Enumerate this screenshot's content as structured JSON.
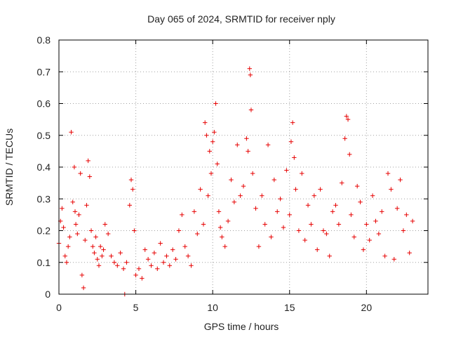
{
  "chart_data": {
    "type": "scatter",
    "title": "Day 065 of 2024, SRMTID for receiver nply",
    "xlabel": "GPS time / hours",
    "ylabel": "SRMTID / TECUs",
    "xlim": [
      0,
      24
    ],
    "ylim": [
      0,
      0.8
    ],
    "xticks": [
      0,
      5,
      10,
      15,
      20
    ],
    "xtick_labels": [
      "0",
      "5",
      "10",
      "15",
      "20"
    ],
    "yticks": [
      0,
      0.1,
      0.2,
      0.3,
      0.4,
      0.5,
      0.6,
      0.7,
      0.8
    ],
    "ytick_labels": [
      "0",
      "0.1",
      "0.2",
      "0.3",
      "0.4",
      "0.5",
      "0.6",
      "0.7",
      "0.8"
    ],
    "grid": true,
    "marker": "+",
    "color": "#e60000",
    "series": [
      {
        "name": "SRMTID",
        "x": [
          0.0,
          0.1,
          0.2,
          0.3,
          0.4,
          0.5,
          0.6,
          0.7,
          0.8,
          0.9,
          1.0,
          1.05,
          1.1,
          1.2,
          1.3,
          1.4,
          1.5,
          1.6,
          1.7,
          1.8,
          1.9,
          2.0,
          2.1,
          2.2,
          2.3,
          2.4,
          2.5,
          2.6,
          2.7,
          2.8,
          2.9,
          3.0,
          3.2,
          3.4,
          3.6,
          3.8,
          4.0,
          4.2,
          4.28,
          4.4,
          4.6,
          4.7,
          4.8,
          4.9,
          5.0,
          5.2,
          5.4,
          5.6,
          5.8,
          6.0,
          6.2,
          6.4,
          6.6,
          6.8,
          7.0,
          7.2,
          7.4,
          7.6,
          7.8,
          8.0,
          8.2,
          8.4,
          8.6,
          8.8,
          9.0,
          9.2,
          9.4,
          9.5,
          9.6,
          9.7,
          9.8,
          9.9,
          10.0,
          10.1,
          10.2,
          10.3,
          10.4,
          10.5,
          10.6,
          10.8,
          11.0,
          11.2,
          11.4,
          11.6,
          11.8,
          12.0,
          12.2,
          12.3,
          12.4,
          12.45,
          12.5,
          12.6,
          12.8,
          13.0,
          13.2,
          13.4,
          13.6,
          13.8,
          14.0,
          14.2,
          14.4,
          14.6,
          14.8,
          15.0,
          15.1,
          15.2,
          15.3,
          15.4,
          15.6,
          15.8,
          16.0,
          16.2,
          16.4,
          16.6,
          16.8,
          17.0,
          17.2,
          17.4,
          17.6,
          17.8,
          18.0,
          18.2,
          18.4,
          18.6,
          18.7,
          18.8,
          18.9,
          19.0,
          19.2,
          19.4,
          19.6,
          19.8,
          20.0,
          20.2,
          20.4,
          20.6,
          20.8,
          21.0,
          21.2,
          21.4,
          21.6,
          21.8,
          22.0,
          22.2,
          22.4,
          22.6,
          22.8,
          23.0
        ],
        "values": [
          0.16,
          0.23,
          0.27,
          0.21,
          0.12,
          0.1,
          0.15,
          0.18,
          0.51,
          0.29,
          0.4,
          0.26,
          0.22,
          0.19,
          0.25,
          0.38,
          0.06,
          0.02,
          0.17,
          0.28,
          0.42,
          0.37,
          0.2,
          0.15,
          0.13,
          0.18,
          0.11,
          0.09,
          0.15,
          0.12,
          0.14,
          0.22,
          0.19,
          0.12,
          0.1,
          0.09,
          0.13,
          0.08,
          0.0,
          0.1,
          0.28,
          0.36,
          0.33,
          0.2,
          0.06,
          0.08,
          0.05,
          0.14,
          0.11,
          0.09,
          0.13,
          0.08,
          0.16,
          0.1,
          0.12,
          0.09,
          0.14,
          0.11,
          0.2,
          0.25,
          0.15,
          0.12,
          0.09,
          0.26,
          0.19,
          0.33,
          0.22,
          0.54,
          0.5,
          0.31,
          0.45,
          0.38,
          0.48,
          0.51,
          0.6,
          0.41,
          0.26,
          0.21,
          0.18,
          0.15,
          0.23,
          0.36,
          0.29,
          0.47,
          0.31,
          0.34,
          0.49,
          0.45,
          0.71,
          0.69,
          0.58,
          0.38,
          0.27,
          0.15,
          0.31,
          0.22,
          0.47,
          0.18,
          0.36,
          0.26,
          0.3,
          0.21,
          0.39,
          0.25,
          0.48,
          0.54,
          0.43,
          0.33,
          0.2,
          0.38,
          0.17,
          0.28,
          0.22,
          0.31,
          0.14,
          0.33,
          0.2,
          0.19,
          0.12,
          0.26,
          0.28,
          0.22,
          0.35,
          0.49,
          0.56,
          0.55,
          0.44,
          0.25,
          0.18,
          0.34,
          0.29,
          0.14,
          0.22,
          0.17,
          0.31,
          0.23,
          0.19,
          0.26,
          0.12,
          0.38,
          0.33,
          0.11,
          0.27,
          0.36,
          0.2,
          0.25,
          0.13,
          0.23
        ]
      }
    ]
  }
}
